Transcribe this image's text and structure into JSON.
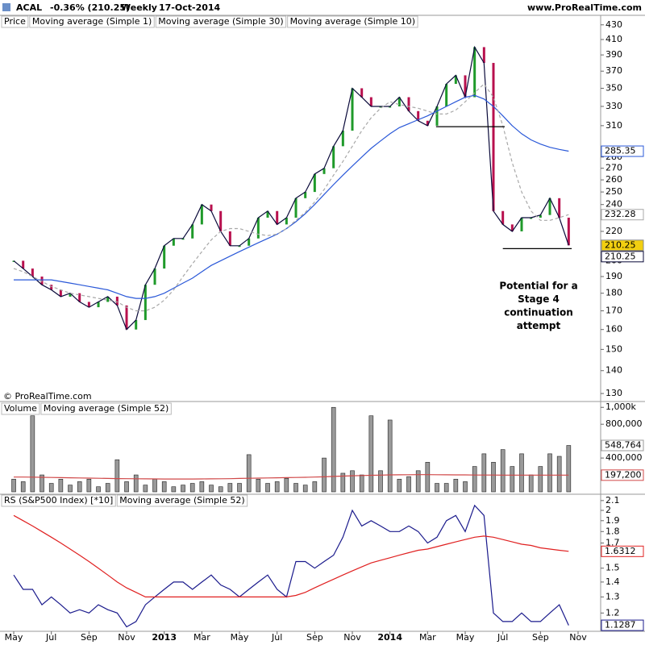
{
  "header": {
    "symbol": "ACAL",
    "change": "-0.36% (210.25)",
    "period": "Weekly",
    "date": "17-Oct-2014",
    "source": "www.ProRealTime.com"
  },
  "chart_data": [
    {
      "type": "line",
      "log_y": true,
      "credit": "© ProRealTime.com",
      "x": [
        0,
        0.5,
        1,
        1.5,
        2,
        2.5,
        3,
        3.5,
        4,
        4.5,
        5,
        5.5,
        6,
        6.5,
        7,
        7.5,
        8,
        8.5,
        9,
        9.5,
        10,
        10.5,
        11,
        11.5,
        12,
        12.5,
        13,
        13.5,
        14,
        14.5,
        15,
        15.5,
        16,
        16.5,
        17,
        17.5,
        18,
        18.5,
        19,
        19.5,
        20,
        20.5,
        21,
        21.5,
        22,
        22.5,
        23,
        23.5,
        24,
        24.5,
        25,
        25.5,
        26,
        26.5,
        27,
        27.5,
        28,
        28.5,
        29,
        29.5
      ],
      "xlim": [
        -0.73,
        31.2
      ],
      "ylim": [
        127,
        440
      ],
      "yticks": [
        130,
        140,
        150,
        160,
        170,
        180,
        190,
        200,
        220,
        240,
        250,
        260,
        270,
        280,
        310,
        330,
        350,
        370,
        390,
        410,
        430
      ],
      "series": [
        {
          "name": "Price",
          "style": "updown",
          "color": "#000000",
          "up_color": "#1f9a2a",
          "down_color": "#b8104e",
          "tag_color": "#f2cf10",
          "tag": true,
          "values": [
            200,
            195,
            190,
            185,
            182,
            178,
            180,
            175,
            172,
            175,
            178,
            173,
            160,
            165,
            185,
            195,
            210,
            215,
            215,
            225,
            240,
            235,
            220,
            210,
            210,
            215,
            230,
            235,
            225,
            230,
            245,
            250,
            265,
            270,
            290,
            305,
            350,
            340,
            330,
            330,
            330,
            340,
            325,
            315,
            310,
            330,
            355,
            365,
            340,
            400,
            380,
            235,
            225,
            220,
            230,
            230,
            232,
            245,
            230,
            210.25
          ]
        },
        {
          "name": "Moving average (Simple 1)",
          "style": "line",
          "color": "#0a0a3a",
          "label_color": "#1a2fa0",
          "tag": true,
          "values": [
            200,
            195,
            190,
            185,
            182,
            178,
            180,
            175,
            172,
            175,
            178,
            173,
            160,
            165,
            185,
            195,
            210,
            215,
            215,
            225,
            240,
            235,
            220,
            210,
            210,
            215,
            230,
            235,
            225,
            230,
            245,
            250,
            265,
            270,
            290,
            305,
            350,
            340,
            330,
            330,
            330,
            340,
            325,
            315,
            310,
            330,
            355,
            365,
            340,
            400,
            380,
            235,
            225,
            220,
            230,
            230,
            232,
            245,
            230,
            210.25
          ]
        },
        {
          "name": "Moving average (Simple 30)",
          "style": "line",
          "color": "#2a58d8",
          "tag": true,
          "values": [
            188,
            188,
            188,
            188,
            188,
            187,
            186,
            185,
            184,
            183,
            182,
            180,
            178,
            177,
            177,
            178,
            180,
            183,
            186,
            189,
            193,
            197,
            200,
            203,
            206,
            209,
            212,
            215,
            218,
            222,
            227,
            233,
            240,
            248,
            256,
            264,
            272,
            280,
            288,
            295,
            302,
            308,
            312,
            316,
            320,
            325,
            330,
            335,
            340,
            342,
            338,
            330,
            320,
            310,
            302,
            296,
            292,
            289,
            287,
            285.35
          ]
        },
        {
          "name": "Moving average (Simple 10)",
          "style": "dashed",
          "color": "#a8a8a8",
          "tag": true,
          "values": [
            195,
            193,
            190,
            187,
            184,
            182,
            180,
            179,
            178,
            177,
            176,
            175,
            172,
            170,
            170,
            172,
            176,
            182,
            190,
            198,
            206,
            214,
            220,
            222,
            222,
            220,
            218,
            217,
            218,
            222,
            228,
            234,
            242,
            252,
            264,
            276,
            290,
            305,
            318,
            328,
            335,
            332,
            330,
            328,
            325,
            322,
            322,
            326,
            335,
            345,
            355,
            340,
            310,
            275,
            250,
            235,
            228,
            228,
            230,
            232.28
          ]
        }
      ],
      "hlines": [
        {
          "y": 309,
          "x": [
            22.45,
            26.1
          ]
        },
        {
          "y": 208,
          "x": [
            26.0,
            29.66
          ]
        }
      ],
      "annotation": [
        "Potential for a",
        "Stage 4",
        "continuation",
        "attempt"
      ]
    },
    {
      "type": "bar",
      "xlim": [
        -0.73,
        31.2
      ],
      "ylim": [
        0,
        1050000
      ],
      "yticks": [
        {
          "value": 1000000,
          "label": "1,000k"
        },
        {
          "value": 800000,
          "label": "800,000"
        },
        {
          "value": 400000,
          "label": "400,000"
        }
      ],
      "series": [
        {
          "name": "Volume",
          "style": "bar",
          "color": "#9a9a9a",
          "label_color": "#888888",
          "last_label": "548,764",
          "values": [
            150000,
            120000,
            900000,
            200000,
            100000,
            150000,
            80000,
            120000,
            150000,
            60000,
            100000,
            380000,
            120000,
            200000,
            80000,
            150000,
            120000,
            60000,
            80000,
            100000,
            120000,
            80000,
            60000,
            100000,
            100000,
            440000,
            150000,
            100000,
            120000,
            160000,
            100000,
            80000,
            120000,
            400000,
            1000000,
            220000,
            250000,
            200000,
            900000,
            250000,
            850000,
            150000,
            180000,
            250000,
            350000,
            100000,
            100000,
            150000,
            120000,
            300000,
            450000,
            350000,
            500000,
            300000,
            450000,
            200000,
            300000,
            450000,
            420000,
            548764
          ]
        },
        {
          "name": "Moving average (Simple 52)",
          "style": "line",
          "color": "#d04848",
          "label_color": "#e08080",
          "last_label": "197,200",
          "values": [
            175000,
            175000,
            174000,
            172000,
            170000,
            168000,
            166000,
            164000,
            162000,
            160000,
            158000,
            157000,
            156000,
            155000,
            154000,
            153000,
            152000,
            152000,
            152000,
            152000,
            153000,
            154000,
            155000,
            156000,
            158000,
            160000,
            162000,
            164000,
            166000,
            168000,
            170000,
            172000,
            175000,
            178000,
            182000,
            186000,
            190000,
            193000,
            196000,
            198000,
            200000,
            201000,
            202000,
            203000,
            203000,
            202000,
            201000,
            200000,
            200000,
            199000,
            199000,
            199000,
            198000,
            198000,
            198000,
            198000,
            197500,
            197500,
            197200,
            197200
          ]
        }
      ]
    },
    {
      "type": "line",
      "log_y": true,
      "xlim": [
        -0.73,
        31.2
      ],
      "ylim": [
        1.1,
        2.15
      ],
      "yticks": [
        1.2,
        1.3,
        1.4,
        1.5,
        1.7,
        1.8,
        1.9,
        2,
        2.1
      ],
      "xticks": [
        {
          "value": 0,
          "label": "May"
        },
        {
          "value": 2,
          "label": "Jul"
        },
        {
          "value": 4,
          "label": "Sep"
        },
        {
          "value": 6,
          "label": "Nov"
        },
        {
          "value": 8,
          "label": "2013"
        },
        {
          "value": 10,
          "label": "Mar"
        },
        {
          "value": 12,
          "label": "May"
        },
        {
          "value": 14,
          "label": "Jul"
        },
        {
          "value": 16,
          "label": "Sep"
        },
        {
          "value": 18,
          "label": "Nov"
        },
        {
          "value": 20,
          "label": "2014"
        },
        {
          "value": 22,
          "label": "Mar"
        },
        {
          "value": 24,
          "label": "May"
        },
        {
          "value": 26,
          "label": "Jul"
        },
        {
          "value": 28,
          "label": "Sep"
        },
        {
          "value": 30,
          "label": "Nov"
        }
      ],
      "series": [
        {
          "name": "RS (S&P500 Index) [*10]",
          "style": "line",
          "color": "#1a1a8c",
          "tag": true,
          "values": [
            1.45,
            1.35,
            1.35,
            1.25,
            1.3,
            1.25,
            1.2,
            1.22,
            1.2,
            1.25,
            1.22,
            1.2,
            1.12,
            1.15,
            1.25,
            1.3,
            1.35,
            1.4,
            1.4,
            1.35,
            1.4,
            1.45,
            1.38,
            1.35,
            1.3,
            1.35,
            1.4,
            1.45,
            1.35,
            1.3,
            1.55,
            1.55,
            1.5,
            1.55,
            1.6,
            1.75,
            2.0,
            1.85,
            1.9,
            1.85,
            1.8,
            1.8,
            1.85,
            1.8,
            1.7,
            1.75,
            1.9,
            1.95,
            1.8,
            2.05,
            1.95,
            1.2,
            1.15,
            1.15,
            1.2,
            1.15,
            1.15,
            1.2,
            1.25,
            1.1287
          ]
        },
        {
          "name": "Moving average (Simple 52)",
          "style": "line",
          "color": "#e02020",
          "tag": true,
          "values": [
            1.95,
            1.9,
            1.85,
            1.8,
            1.75,
            1.7,
            1.65,
            1.6,
            1.55,
            1.5,
            1.45,
            1.4,
            1.36,
            1.33,
            1.3,
            1.3,
            1.3,
            1.3,
            1.3,
            1.3,
            1.3,
            1.3,
            1.3,
            1.3,
            1.3,
            1.3,
            1.3,
            1.3,
            1.3,
            1.3,
            1.31,
            1.33,
            1.36,
            1.39,
            1.42,
            1.45,
            1.48,
            1.51,
            1.54,
            1.56,
            1.58,
            1.6,
            1.62,
            1.64,
            1.65,
            1.67,
            1.69,
            1.71,
            1.73,
            1.75,
            1.76,
            1.75,
            1.73,
            1.71,
            1.69,
            1.68,
            1.66,
            1.65,
            1.64,
            1.6312
          ]
        }
      ]
    }
  ]
}
